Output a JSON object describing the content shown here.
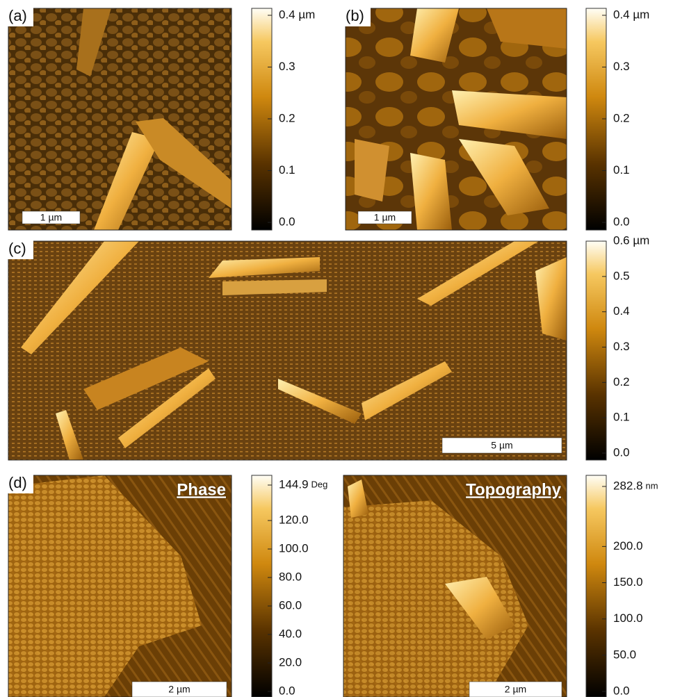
{
  "panels": [
    {
      "label": "(a)",
      "scale_bar": "1 µm",
      "colorbar": {
        "lim": [
          0,
          0.4
        ],
        "ticks": [
          {
            "value": 0,
            "label": "0.0"
          },
          0.1,
          0.2,
          0.3,
          {
            "value": 0.4,
            "label": "0.4 µm"
          }
        ]
      }
    },
    {
      "label": "(b)",
      "scale_bar": "1 µm",
      "colorbar": {
        "lim": [
          0,
          0.4
        ],
        "ticks": [
          {
            "value": 0,
            "label": "0.0"
          },
          0.1,
          0.2,
          0.3,
          {
            "value": 0.4,
            "label": "0.4 µm"
          }
        ]
      }
    },
    {
      "label": "(c)",
      "scale_bar": "5 µm",
      "colorbar": {
        "lim": [
          0,
          0.6
        ],
        "ticks": [
          {
            "value": 0,
            "label": "0.0"
          },
          0.1,
          0.2,
          0.3,
          0.4,
          0.5,
          {
            "value": 0.6,
            "label": "0.6 µm"
          }
        ]
      }
    },
    {
      "label": "(d)",
      "title": "Phase",
      "scale_bar": "2 µm",
      "colorbar": {
        "lim": [
          0,
          144.9
        ],
        "unit": "Deg",
        "ticks": [
          {
            "value": 0,
            "label": "0.0"
          },
          {
            "value": 20,
            "label": "20.0"
          },
          {
            "value": 40,
            "label": "40.0"
          },
          {
            "value": 60,
            "label": "60.0"
          },
          {
            "value": 80,
            "label": "80.0"
          },
          {
            "value": 100,
            "label": "100.0"
          },
          {
            "value": 120,
            "label": "120.0"
          },
          144.9
        ]
      }
    },
    {
      "title": "Topography",
      "scale_bar": "2 µm",
      "colorbar": {
        "lim": [
          0,
          282.8
        ],
        "unit": "nm",
        "ticks": [
          {
            "value": 0,
            "label": "0.0"
          },
          {
            "value": 50,
            "label": "50.0"
          },
          {
            "value": 100,
            "label": "100.0"
          },
          {
            "value": 150,
            "label": "150.0"
          },
          {
            "value": 200,
            "label": "200.0"
          },
          282.8
        ]
      }
    }
  ]
}
